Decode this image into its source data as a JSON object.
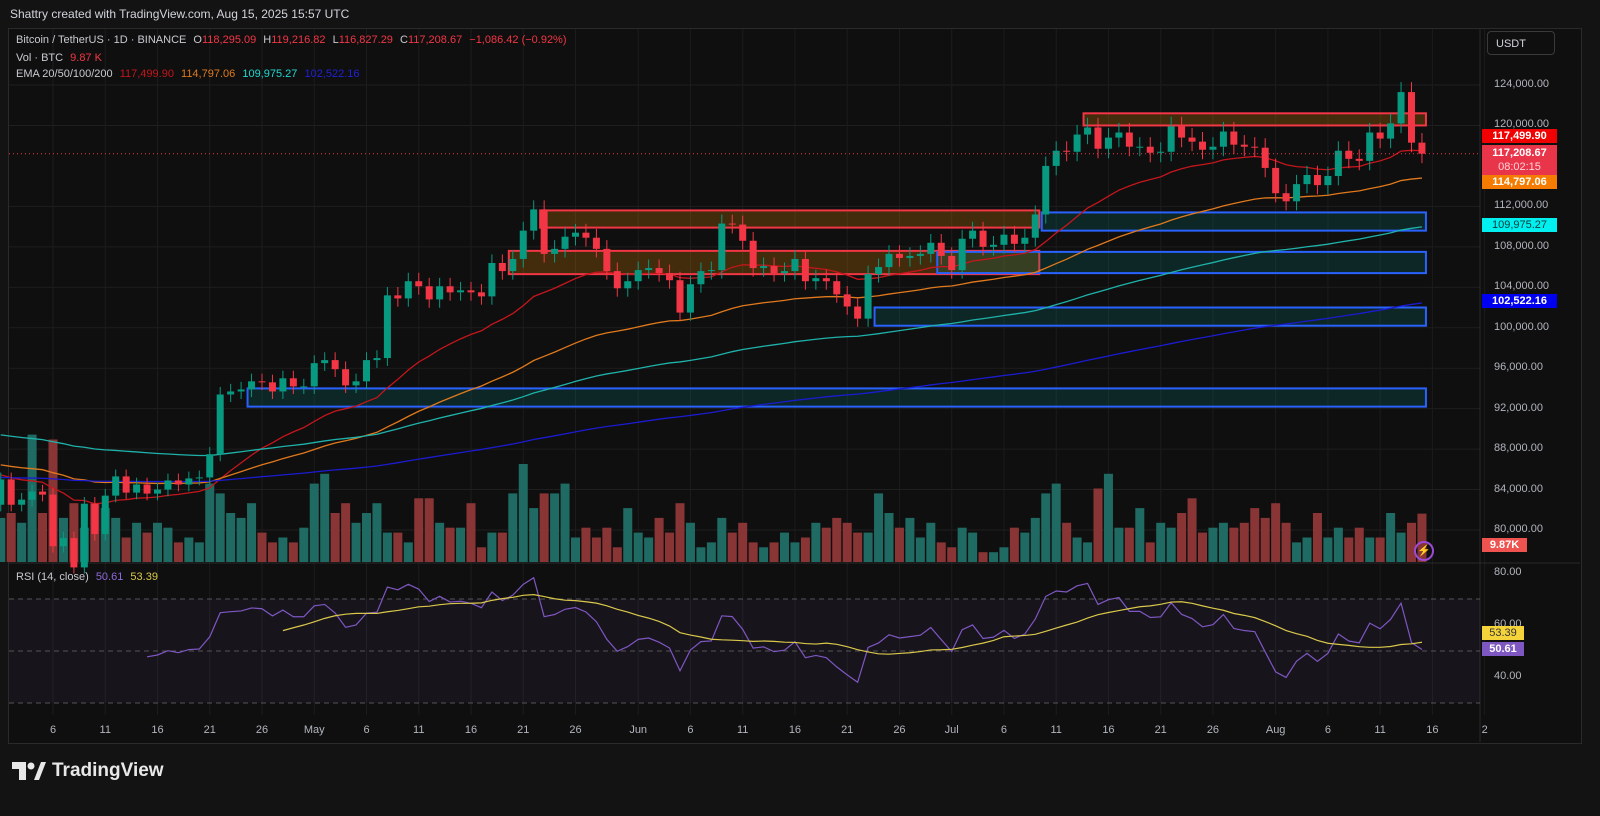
{
  "credit": "Shattry created with TradingView.com, Aug 15, 2025 15:57 UTC",
  "legend": {
    "symbol": "Bitcoin / TetherUS · 1D · BINANCE",
    "o_label": "O",
    "o": "118,295.09",
    "h_label": "H",
    "h": "119,216.82",
    "l_label": "L",
    "l": "116,827.29",
    "c_label": "C",
    "c": "117,208.67",
    "change": "−1,086.42 (−0.92%)",
    "vol_label": "Vol · BTC",
    "vol": "9.87 K",
    "ema_label": "EMA 20/50/100/200",
    "ema20": "117,499.90",
    "ema50": "114,797.06",
    "ema100": "109,975.27",
    "ema200": "102,522.16",
    "rsi_label": "RSI (14, close)",
    "rsi": "50.61",
    "rsi_ma": "53.39"
  },
  "currency_button": "USDT",
  "price_labels": {
    "ema20": "117,499.90",
    "last": "117,208.67",
    "countdown": "08:02:15",
    "ema50": "114,797.06",
    "ema100": "109,975.27",
    "ema200": "102,522.16",
    "volume": "9.87K",
    "rsi_ma": "53.39",
    "rsi": "50.61"
  },
  "brand": "TradingView",
  "colors": {
    "up": "#089981",
    "down": "#f23645",
    "vol_up": "#1f6b63",
    "vol_down": "#8a3535",
    "ema20": "#c4161c",
    "ema50": "#e0791d",
    "ema100": "#1fb2aa",
    "ema200": "#1b1bd1",
    "rsi": "#7e57c2",
    "rsi_ma": "#d9c84b",
    "zone_red": "#f23645",
    "zone_blue": "#2962ff"
  },
  "chart_data": {
    "type": "candlestick",
    "start_date": "2025-04-01",
    "price_ticks": [
      "124,000.00",
      "120,000.00",
      "112,000.00",
      "108,000.00",
      "104,000.00",
      "100,000.00",
      "96,000.00",
      "92,000.00",
      "88,000.00",
      "84,000.00",
      "80,000.00"
    ],
    "price_tick_values": [
      124000,
      120000,
      112000,
      108000,
      104000,
      100000,
      96000,
      92000,
      88000,
      84000,
      80000
    ],
    "rsi_ticks": [
      "80.00",
      "60.00",
      "40.00"
    ],
    "rsi_tick_values": [
      80,
      60,
      40
    ],
    "x_labels": [
      {
        "label": "6",
        "date": "2025-04-06"
      },
      {
        "label": "11",
        "date": "2025-04-11"
      },
      {
        "label": "16",
        "date": "2025-04-16"
      },
      {
        "label": "21",
        "date": "2025-04-21"
      },
      {
        "label": "26",
        "date": "2025-04-26"
      },
      {
        "label": "May",
        "date": "2025-05-01"
      },
      {
        "label": "6",
        "date": "2025-05-06"
      },
      {
        "label": "11",
        "date": "2025-05-11"
      },
      {
        "label": "16",
        "date": "2025-05-16"
      },
      {
        "label": "21",
        "date": "2025-05-21"
      },
      {
        "label": "26",
        "date": "2025-05-26"
      },
      {
        "label": "Jun",
        "date": "2025-06-01"
      },
      {
        "label": "6",
        "date": "2025-06-06"
      },
      {
        "label": "11",
        "date": "2025-06-11"
      },
      {
        "label": "16",
        "date": "2025-06-16"
      },
      {
        "label": "21",
        "date": "2025-06-21"
      },
      {
        "label": "26",
        "date": "2025-06-26"
      },
      {
        "label": "Jul",
        "date": "2025-07-01"
      },
      {
        "label": "6",
        "date": "2025-07-06"
      },
      {
        "label": "11",
        "date": "2025-07-11"
      },
      {
        "label": "16",
        "date": "2025-07-16"
      },
      {
        "label": "21",
        "date": "2025-07-21"
      },
      {
        "label": "26",
        "date": "2025-07-26"
      },
      {
        "label": "Aug",
        "date": "2025-08-01"
      },
      {
        "label": "6",
        "date": "2025-08-06"
      },
      {
        "label": "11",
        "date": "2025-08-11"
      },
      {
        "label": "16",
        "date": "2025-08-16"
      },
      {
        "label": "2",
        "date": "2025-08-21"
      }
    ],
    "first_open": 82500,
    "close": [
      85000,
      82500,
      83000,
      83800,
      83500,
      78400,
      79200,
      76300,
      82600,
      79600,
      83400,
      85300,
      83700,
      84500,
      83600,
      84000,
      84900,
      84500,
      85100,
      85200,
      87500,
      93400,
      93700,
      93900,
      94700,
      94600,
      93700,
      95000,
      94200,
      94200,
      96500,
      96800,
      95900,
      94300,
      94700,
      96800,
      97000,
      103200,
      102900,
      104600,
      104100,
      102800,
      104100,
      103500,
      103700,
      103500,
      103100,
      106400,
      105600,
      106800,
      109600,
      111700,
      107300,
      107800,
      109000,
      109400,
      108900,
      107800,
      105600,
      103900,
      104600,
      105700,
      105900,
      105400,
      104700,
      101500,
      104300,
      105600,
      105700,
      110300,
      110200,
      108600,
      105900,
      106100,
      105400,
      105600,
      106800,
      104600,
      104900,
      104600,
      103300,
      102100,
      100900,
      105300,
      106000,
      107300,
      106900,
      107100,
      107300,
      108400,
      107100,
      105700,
      108800,
      109600,
      108000,
      108200,
      109200,
      108300,
      108900,
      111200,
      116000,
      117500,
      117400,
      119100,
      119800,
      117700,
      118800,
      119300,
      117900,
      117900,
      117300,
      117400,
      119900,
      118800,
      118400,
      117600,
      117900,
      119400,
      118100,
      117900,
      117800,
      115800,
      113300,
      112500,
      114200,
      115100,
      114100,
      115000,
      117500,
      116700,
      116500,
      119300,
      118700,
      120200,
      123300,
      118300,
      117208.67
    ],
    "volume_k": [
      9,
      10,
      8,
      26,
      10,
      25,
      9,
      12,
      7,
      12,
      11,
      9,
      5,
      8,
      6,
      8,
      7,
      4,
      5,
      4,
      16,
      14,
      10,
      9,
      12,
      6,
      4,
      5,
      4,
      7,
      16,
      18,
      10,
      12,
      8,
      10,
      12,
      6,
      6,
      4,
      13,
      13,
      8,
      7,
      7,
      12,
      3,
      6,
      6,
      14,
      20,
      11,
      14,
      14,
      16,
      5,
      7,
      5,
      7,
      3,
      11,
      6,
      5,
      9,
      6,
      12,
      8,
      3,
      4,
      9,
      6,
      8,
      4,
      3,
      4,
      6,
      4,
      5,
      8,
      7,
      9,
      8,
      6,
      6,
      14,
      10,
      7,
      9,
      5,
      8,
      4,
      3,
      7,
      6,
      2,
      2,
      3,
      7,
      6,
      9,
      14,
      16,
      8,
      5,
      4,
      15,
      18,
      7,
      7,
      11,
      4,
      8,
      7,
      10,
      13,
      6,
      7,
      8,
      7,
      8,
      11,
      9,
      12,
      8,
      4,
      5,
      10,
      5,
      7,
      5,
      7,
      5,
      5,
      10,
      6,
      8,
      9.87
    ],
    "ema_initial": {
      "ema20": 85500,
      "ema50": 86500,
      "ema100": 89500,
      "ema200": 85200
    },
    "ema_periods": [
      20,
      50,
      100,
      200
    ],
    "zones": [
      {
        "kind": "supply",
        "from": "2025-07-14",
        "to": "2025-08-15",
        "top": 121200,
        "bottom": 120000
      },
      {
        "kind": "supply",
        "from": "2025-05-23",
        "to": "2025-07-09",
        "top": 111600,
        "bottom": 109900
      },
      {
        "kind": "supply",
        "from": "2025-05-20",
        "to": "2025-07-09",
        "top": 107600,
        "bottom": 105300
      },
      {
        "kind": "demand",
        "from": "2025-07-10",
        "to": "2025-08-15",
        "top": 111400,
        "bottom": 109600
      },
      {
        "kind": "demand",
        "from": "2025-06-30",
        "to": "2025-08-15",
        "top": 107500,
        "bottom": 105400
      },
      {
        "kind": "demand",
        "from": "2025-06-24",
        "to": "2025-08-15",
        "top": 102000,
        "bottom": 100200
      },
      {
        "kind": "demand",
        "from": "2025-04-25",
        "to": "2025-08-15",
        "top": 94000,
        "bottom": 92200
      }
    ],
    "rsi_levels": [
      70,
      50,
      30
    ],
    "last_price": 117208.67
  }
}
